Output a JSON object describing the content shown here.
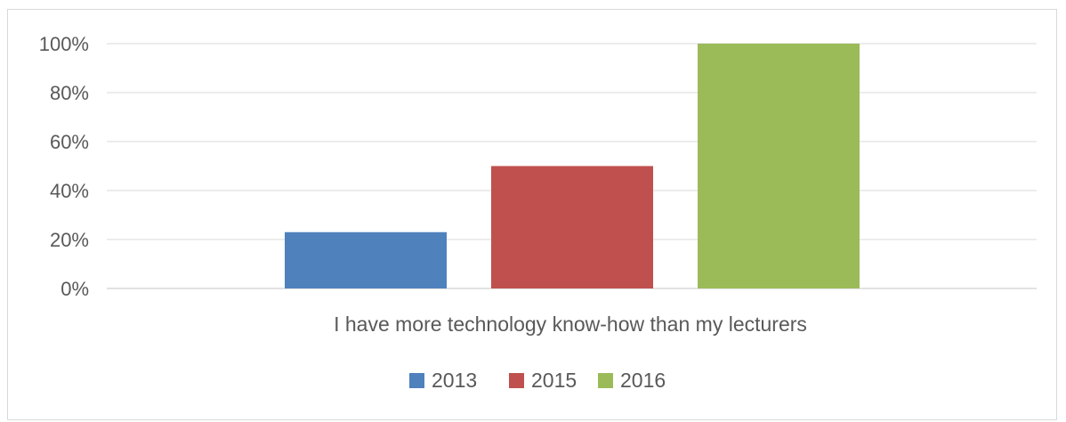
{
  "chart_data": {
    "type": "bar",
    "categories": [
      "I have more technology know-how than my lecturers"
    ],
    "series": [
      {
        "name": "2013",
        "values": [
          23
        ],
        "color": "#4f81bd"
      },
      {
        "name": "2015",
        "values": [
          50
        ],
        "color": "#c0504d"
      },
      {
        "name": "2016",
        "values": [
          100
        ],
        "color": "#9bbb59"
      }
    ],
    "y_ticks": [
      "0%",
      "20%",
      "40%",
      "60%",
      "80%",
      "100%"
    ],
    "ylim": [
      0,
      100
    ],
    "grid": true,
    "legend_position": "bottom",
    "gridline_color": "#d9d9d9"
  }
}
